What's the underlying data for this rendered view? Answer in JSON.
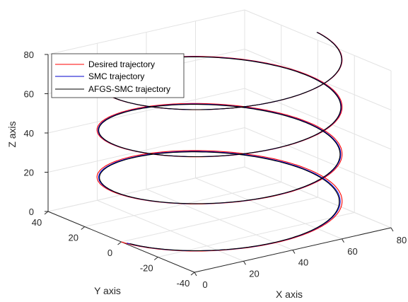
{
  "chart_data": {
    "type": "line3d",
    "xlabel": "X axis",
    "ylabel": "Y axis",
    "zlabel": "Z axis",
    "xlim": [
      0,
      80
    ],
    "ylim": [
      -40,
      40
    ],
    "zlim": [
      0,
      80
    ],
    "x_ticks": [
      "0",
      "20",
      "40",
      "60",
      "80"
    ],
    "y_ticks": [
      "-40",
      "-20",
      "0",
      "20",
      "40"
    ],
    "z_ticks": [
      "0",
      "20",
      "40",
      "60",
      "80"
    ],
    "grid": true,
    "legend_position": "top-left",
    "helix": {
      "center_x": 40,
      "center_y": 0,
      "radius": 40,
      "z_start": 0,
      "z_end": 84,
      "turns": 3.5
    },
    "series": [
      {
        "name": "Desired trajectory",
        "color": "#ff0000"
      },
      {
        "name": "SMC trajectory",
        "color": "#0000cc"
      },
      {
        "name": "AFGS-SMC trajectory",
        "color": "#000000"
      }
    ]
  }
}
